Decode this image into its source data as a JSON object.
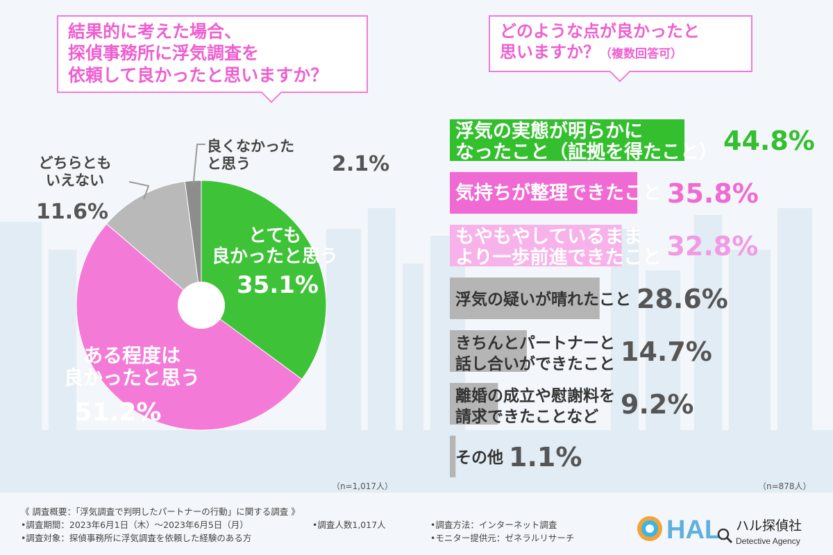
{
  "left_question": {
    "line1": "結果的に考えた場合、",
    "line2": "探偵事務所に浮気調査を",
    "line3": "依頼して良かったと思いますか？"
  },
  "right_question": {
    "line1": "どのような点が良かったと",
    "line2": "思いますか？",
    "note": "（複数回答可）"
  },
  "left_n": "（n=1,017人）",
  "right_n": "（n=878人）",
  "chart_data": [
    {
      "type": "pie",
      "slices": [
        {
          "label": "とても良かったと思う",
          "label_lines": [
            "とても",
            "良かったと思う"
          ],
          "value": 35.1,
          "value_text": "35.1%",
          "color": "#3ec238"
        },
        {
          "label": "ある程度は良かったと思う",
          "label_lines": [
            "ある程度は",
            "良かったと思う"
          ],
          "value": 51.2,
          "value_text": "51.2%",
          "color": "#f47ad7"
        },
        {
          "label": "どちらともいえない",
          "label_lines": [
            "どちらとも",
            "いえない"
          ],
          "value": 11.6,
          "value_text": "11.6%",
          "color": "#b9b9b9"
        },
        {
          "label": "良くなかったと思う",
          "label_lines": [
            "良くなかった",
            "と思う"
          ],
          "value": 2.1,
          "value_text": "2.1%",
          "color": "#8d8d8d"
        }
      ]
    },
    {
      "type": "bar",
      "orientation": "horizontal",
      "categories": [
        [
          "浮気の実態が明らかに",
          "なったこと（証拠を得たこと）"
        ],
        [
          "気持ちが整理できたこと"
        ],
        [
          "もやもやしているまま",
          "より一歩前進できたこと"
        ],
        [
          "浮気の疑いが晴れたこと"
        ],
        [
          "きちんとパートナーと",
          "話し合いができたこと"
        ],
        [
          "離婚の成立や慰謝料を",
          "請求できたことなど"
        ],
        [
          "その他"
        ]
      ],
      "values": [
        44.8,
        35.8,
        32.8,
        28.6,
        14.7,
        9.2,
        1.1
      ],
      "value_texts": [
        "44.8%",
        "35.8%",
        "32.8%",
        "28.6%",
        "14.7%",
        "9.2%",
        "1.1%"
      ],
      "colors": [
        "#33bf2e",
        "#f06ad3",
        "#f7b2ea",
        "#b5b5b5",
        "#b5b5b5",
        "#b5b5b5",
        "#b5b5b5"
      ],
      "value_colors": [
        "#33bf2e",
        "#f06ad3",
        "#f29ae3",
        "#555555",
        "#555555",
        "#555555",
        "#555555"
      ],
      "xlim": [
        0,
        44.8
      ]
    }
  ],
  "footer": {
    "overview": "《 調査概要：「浮気調査で判明したパートナーの行動」に関する調査 》",
    "period": "•調査期間：2023年6月1日（木）〜2023年6月5日（月）",
    "count": "•調査人数1,017人",
    "method": "•調査方法：インターネット調査",
    "target": "•調査対象：探偵事務所に浮気調査を依頼した経験のある方",
    "monitor": "•モニター提供元：ゼネラルリサーチ"
  },
  "logo": {
    "letters": "HAL",
    "name": "ハル探偵社",
    "sub": "Detective Agency"
  }
}
